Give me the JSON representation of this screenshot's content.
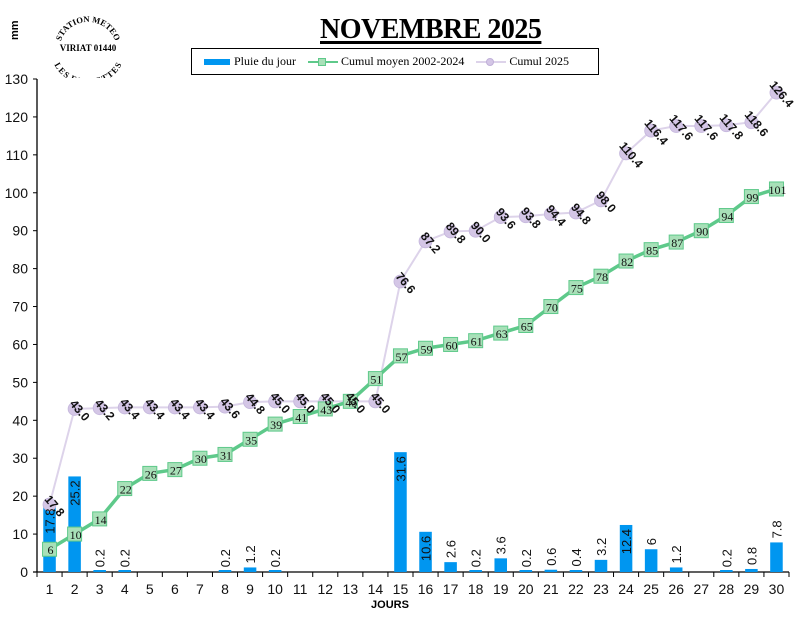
{
  "header": {
    "title": "NOVEMBRE 2025",
    "unit": "mm",
    "logo": {
      "top_text": "STATION METEO",
      "middle_text": "VIRIAT 01440",
      "bottom_text": "LES FAUVETTES"
    }
  },
  "legend": {
    "items": [
      {
        "label": "Pluie du jour",
        "type": "bar",
        "color": "#0096f0"
      },
      {
        "label": "Cumul moyen 2002-2024",
        "type": "line-square",
        "color": "#5ec98a"
      },
      {
        "label": "Cumul 2025",
        "type": "line-circle",
        "color": "#d9cfe8"
      }
    ]
  },
  "colors": {
    "bar": "#0096f0",
    "avg_line": "#5ec98a",
    "avg_marker_fill": "#a8e0b8",
    "cumul_line": "#ddd3ea",
    "cumul_marker_fill": "#d4c6e6",
    "axis": "#000000"
  },
  "chart_data": {
    "type": "bar+line",
    "title": "NOVEMBRE 2025",
    "xlabel": "JOURS",
    "ylabel": "mm",
    "ylim": [
      0,
      130
    ],
    "yticks": [
      0,
      10,
      20,
      30,
      40,
      50,
      60,
      70,
      80,
      90,
      100,
      110,
      120,
      130
    ],
    "grid": false,
    "legend_position": "top",
    "categories": [
      "1",
      "2",
      "3",
      "4",
      "5",
      "6",
      "7",
      "8",
      "9",
      "10",
      "11",
      "12",
      "13",
      "14",
      "15",
      "16",
      "17",
      "18",
      "19",
      "20",
      "21",
      "22",
      "23",
      "24",
      "25",
      "26",
      "27",
      "28",
      "29",
      "30"
    ],
    "series": [
      {
        "name": "Pluie du jour",
        "type": "bar",
        "values": [
          17.8,
          25.2,
          0.2,
          0.2,
          0,
          0,
          0,
          0.2,
          1.2,
          0.2,
          0,
          0,
          0,
          0,
          31.6,
          10.6,
          2.6,
          0.2,
          3.6,
          0.2,
          0.6,
          0.4,
          3.2,
          12.4,
          6,
          1.2,
          0,
          0.2,
          0.8,
          7.8
        ],
        "labels": [
          "17.8",
          "25.2",
          "0.2",
          "0.2",
          "",
          "",
          "",
          "0.2",
          "1.2",
          "0.2",
          "",
          "",
          "",
          "",
          "31.6",
          "10.6",
          "2.6",
          "0.2",
          "3.6",
          "0.2",
          "0.6",
          "0.4",
          "3.2",
          "12.4",
          "6",
          "1.2",
          "",
          "0.2",
          "0.8",
          "7.8"
        ]
      },
      {
        "name": "Cumul moyen 2002-2024",
        "type": "line",
        "marker": "square",
        "values": [
          6,
          10,
          14,
          22,
          26,
          27,
          30,
          31,
          35,
          39,
          41,
          43,
          45,
          51,
          57,
          59,
          60,
          61,
          63,
          65,
          70,
          75,
          78,
          82,
          85,
          87,
          90,
          94,
          99,
          101
        ]
      },
      {
        "name": "Cumul 2025",
        "type": "line",
        "marker": "circle",
        "values": [
          17.8,
          43.0,
          43.2,
          43.4,
          43.4,
          43.4,
          43.4,
          43.6,
          44.8,
          45.0,
          45.0,
          45.0,
          45.0,
          45.0,
          76.6,
          87.2,
          89.8,
          90.0,
          93.6,
          93.8,
          94.4,
          94.8,
          98.0,
          110.4,
          116.4,
          117.6,
          117.6,
          117.8,
          118.6,
          126.4
        ],
        "labels": [
          "17.8",
          "43.0",
          "43.2",
          "43.4",
          "43.4",
          "43.4",
          "43.4",
          "43.6",
          "44.8",
          "45.0",
          "45.0",
          "45.0",
          "45.0",
          "45.0",
          "76.6",
          "87.2",
          "89.8",
          "90.0",
          "93.6",
          "93.8",
          "94.4",
          "94.8",
          "98.0",
          "110.4",
          "116.4",
          "117.6",
          "117.6",
          "117.8",
          "118.6",
          "126.4"
        ]
      }
    ]
  }
}
